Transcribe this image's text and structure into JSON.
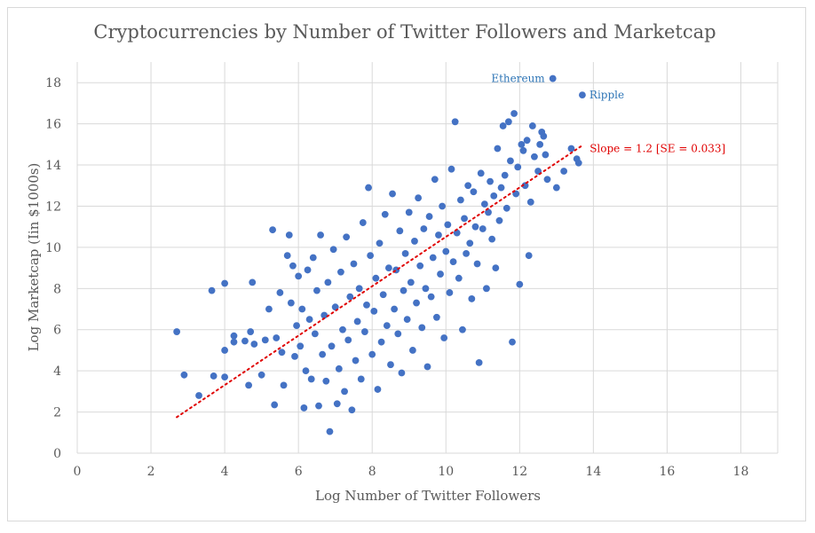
{
  "chart_data": {
    "type": "scatter",
    "title": "Cryptocurrencies by Number of Twitter Followers and Marketcap",
    "xlabel": "Log Number of Twitter Followers",
    "ylabel": "Log Marketcap (Iin $1000s)",
    "xlim": [
      0,
      19
    ],
    "ylim": [
      0,
      19
    ],
    "xticks": [
      "0",
      "2",
      "4",
      "6",
      "8",
      "10",
      "12",
      "14",
      "16",
      "18"
    ],
    "yticks": [
      "0",
      "2",
      "4",
      "6",
      "8",
      "10",
      "12",
      "14",
      "16",
      "18"
    ],
    "grid": true,
    "legend": "none",
    "marker_color": "#4472c4",
    "trendline_color": "#e00000",
    "trendline": {
      "x": [
        2.7,
        13.7
      ],
      "y": [
        1.75,
        14.95
      ],
      "style": "dotted"
    },
    "annotation": {
      "text": "Slope = 1.2 [SE = 0.033]",
      "x": 13.9,
      "y": 14.8
    },
    "labeled_points": [
      {
        "label": "Ethereum",
        "x": 12.9,
        "y": 18.2
      },
      {
        "label": "Ripple",
        "x": 13.7,
        "y": 17.4
      }
    ],
    "points": [
      [
        2.7,
        5.9
      ],
      [
        2.9,
        3.8
      ],
      [
        3.3,
        2.8
      ],
      [
        3.65,
        7.9
      ],
      [
        3.7,
        3.75
      ],
      [
        4.0,
        8.25
      ],
      [
        4.0,
        5.0
      ],
      [
        4.0,
        3.7
      ],
      [
        4.25,
        5.7
      ],
      [
        4.25,
        5.4
      ],
      [
        4.55,
        5.45
      ],
      [
        4.65,
        3.3
      ],
      [
        4.7,
        5.9
      ],
      [
        4.75,
        8.3
      ],
      [
        4.8,
        5.3
      ],
      [
        5.0,
        3.8
      ],
      [
        5.1,
        5.5
      ],
      [
        5.2,
        7.0
      ],
      [
        5.3,
        10.85
      ],
      [
        5.35,
        2.35
      ],
      [
        5.4,
        5.6
      ],
      [
        5.5,
        7.8
      ],
      [
        5.55,
        4.9
      ],
      [
        5.6,
        3.3
      ],
      [
        5.7,
        9.6
      ],
      [
        5.75,
        10.6
      ],
      [
        5.8,
        7.3
      ],
      [
        5.85,
        9.1
      ],
      [
        5.9,
        4.7
      ],
      [
        5.95,
        6.2
      ],
      [
        6.0,
        8.6
      ],
      [
        6.05,
        5.2
      ],
      [
        6.1,
        7.0
      ],
      [
        6.15,
        2.2
      ],
      [
        6.2,
        4.0
      ],
      [
        6.25,
        8.9
      ],
      [
        6.3,
        6.5
      ],
      [
        6.35,
        3.6
      ],
      [
        6.4,
        9.5
      ],
      [
        6.45,
        5.8
      ],
      [
        6.5,
        7.9
      ],
      [
        6.55,
        2.3
      ],
      [
        6.6,
        10.6
      ],
      [
        6.65,
        4.8
      ],
      [
        6.7,
        6.7
      ],
      [
        6.75,
        3.5
      ],
      [
        6.8,
        8.3
      ],
      [
        6.85,
        1.05
      ],
      [
        6.9,
        5.2
      ],
      [
        6.95,
        9.9
      ],
      [
        7.0,
        7.1
      ],
      [
        7.05,
        2.4
      ],
      [
        7.1,
        4.1
      ],
      [
        7.15,
        8.8
      ],
      [
        7.2,
        6.0
      ],
      [
        7.25,
        3.0
      ],
      [
        7.3,
        10.5
      ],
      [
        7.35,
        5.5
      ],
      [
        7.4,
        7.6
      ],
      [
        7.45,
        2.1
      ],
      [
        7.5,
        9.2
      ],
      [
        7.55,
        4.5
      ],
      [
        7.6,
        6.4
      ],
      [
        7.65,
        8.0
      ],
      [
        7.7,
        3.6
      ],
      [
        7.75,
        11.2
      ],
      [
        7.8,
        5.9
      ],
      [
        7.85,
        7.2
      ],
      [
        7.9,
        12.9
      ],
      [
        7.95,
        9.6
      ],
      [
        8.0,
        4.8
      ],
      [
        8.05,
        6.9
      ],
      [
        8.1,
        8.5
      ],
      [
        8.15,
        3.1
      ],
      [
        8.2,
        10.2
      ],
      [
        8.25,
        5.4
      ],
      [
        8.3,
        7.7
      ],
      [
        8.35,
        11.6
      ],
      [
        8.4,
        6.2
      ],
      [
        8.45,
        9.0
      ],
      [
        8.5,
        4.3
      ],
      [
        8.55,
        12.6
      ],
      [
        8.6,
        7.0
      ],
      [
        8.65,
        8.9
      ],
      [
        8.7,
        5.8
      ],
      [
        8.75,
        10.8
      ],
      [
        8.8,
        3.9
      ],
      [
        8.85,
        7.9
      ],
      [
        8.9,
        9.7
      ],
      [
        8.95,
        6.5
      ],
      [
        9.0,
        11.7
      ],
      [
        9.05,
        8.3
      ],
      [
        9.1,
        5.0
      ],
      [
        9.15,
        10.3
      ],
      [
        9.2,
        7.3
      ],
      [
        9.25,
        12.4
      ],
      [
        9.3,
        9.1
      ],
      [
        9.35,
        6.1
      ],
      [
        9.4,
        10.9
      ],
      [
        9.45,
        8.0
      ],
      [
        9.5,
        4.2
      ],
      [
        9.55,
        11.5
      ],
      [
        9.6,
        7.6
      ],
      [
        9.65,
        9.5
      ],
      [
        9.7,
        13.3
      ],
      [
        9.75,
        6.6
      ],
      [
        9.8,
        10.6
      ],
      [
        9.85,
        8.7
      ],
      [
        9.9,
        12.0
      ],
      [
        9.95,
        5.6
      ],
      [
        10.0,
        9.8
      ],
      [
        10.05,
        11.1
      ],
      [
        10.1,
        7.8
      ],
      [
        10.15,
        13.8
      ],
      [
        10.2,
        9.3
      ],
      [
        10.25,
        16.1
      ],
      [
        10.3,
        10.7
      ],
      [
        10.35,
        8.5
      ],
      [
        10.4,
        12.3
      ],
      [
        10.45,
        6.0
      ],
      [
        10.5,
        11.4
      ],
      [
        10.55,
        9.7
      ],
      [
        10.6,
        13.0
      ],
      [
        10.65,
        10.2
      ],
      [
        10.7,
        7.5
      ],
      [
        10.75,
        12.7
      ],
      [
        10.8,
        11.0
      ],
      [
        10.85,
        9.2
      ],
      [
        10.9,
        4.4
      ],
      [
        10.95,
        13.6
      ],
      [
        11.0,
        10.9
      ],
      [
        11.05,
        12.1
      ],
      [
        11.1,
        8.0
      ],
      [
        11.15,
        11.7
      ],
      [
        11.2,
        13.2
      ],
      [
        11.25,
        10.4
      ],
      [
        11.3,
        12.5
      ],
      [
        11.35,
        9.0
      ],
      [
        11.4,
        14.8
      ],
      [
        11.45,
        11.3
      ],
      [
        11.5,
        12.9
      ],
      [
        11.55,
        15.9
      ],
      [
        11.6,
        13.5
      ],
      [
        11.65,
        11.9
      ],
      [
        11.7,
        16.1
      ],
      [
        11.75,
        14.2
      ],
      [
        11.8,
        5.4
      ],
      [
        11.85,
        16.5
      ],
      [
        11.9,
        12.6
      ],
      [
        11.95,
        13.9
      ],
      [
        12.0,
        8.2
      ],
      [
        12.05,
        15.0
      ],
      [
        12.1,
        14.7
      ],
      [
        12.15,
        13.0
      ],
      [
        12.2,
        15.2
      ],
      [
        12.25,
        9.6
      ],
      [
        12.3,
        12.2
      ],
      [
        12.35,
        15.9
      ],
      [
        12.4,
        14.4
      ],
      [
        12.5,
        13.7
      ],
      [
        12.55,
        15.0
      ],
      [
        12.6,
        15.6
      ],
      [
        12.65,
        15.4
      ],
      [
        12.7,
        14.5
      ],
      [
        12.75,
        13.3
      ],
      [
        13.55,
        14.3
      ],
      [
        13.2,
        13.7
      ],
      [
        13.4,
        14.8
      ],
      [
        13.6,
        14.1
      ],
      [
        13.0,
        12.9
      ]
    ]
  }
}
